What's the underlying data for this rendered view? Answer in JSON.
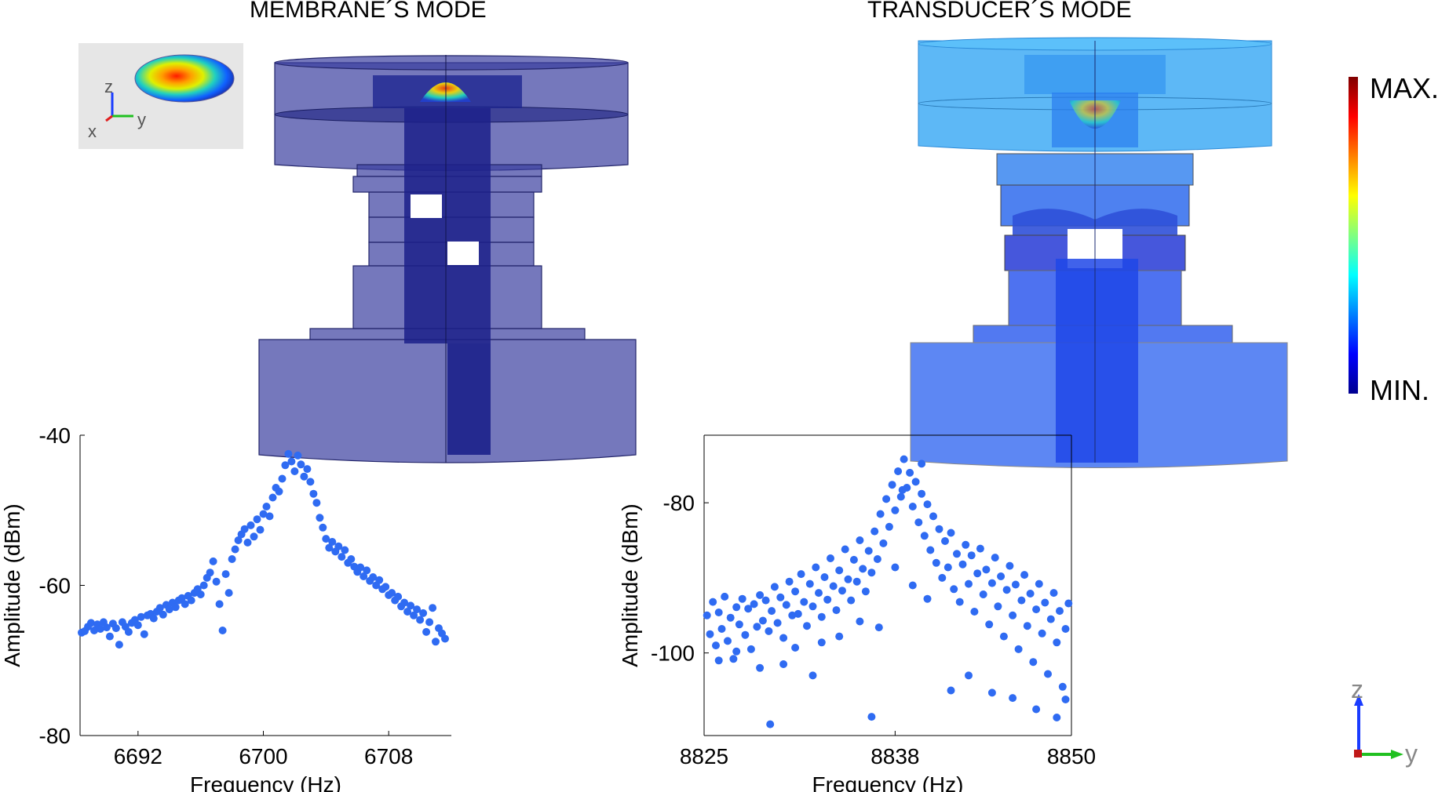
{
  "titles": {
    "left": "MEMBRANE´S MODE",
    "right": "TRANSDUCER´S MODE"
  },
  "colorbar": {
    "max_label": "MAX.",
    "min_label": "MIN.",
    "colors": [
      "#00008f",
      "#0000ff",
      "#0080ff",
      "#00ffff",
      "#80ff80",
      "#ffff00",
      "#ff8000",
      "#ff0000",
      "#800000"
    ]
  },
  "triad_inset": {
    "z": "z",
    "x": "x",
    "y": "y"
  },
  "triad_corner": {
    "z": "z",
    "y": "y"
  },
  "chart_data": [
    {
      "type": "scatter",
      "title": "",
      "xlabel": "Frequency (Hz)",
      "ylabel": "Amplitude (dBm)",
      "xlim": [
        6688.3,
        6712
      ],
      "ylim": [
        -80,
        -40
      ],
      "xticks": [
        6692,
        6700,
        6708
      ],
      "yticks": [
        -40,
        -60,
        -80
      ],
      "color": "#2f6bf2",
      "points": [
        [
          6688.4,
          -66.3
        ],
        [
          6688.6,
          -66.1
        ],
        [
          6688.8,
          -65.5
        ],
        [
          6689.0,
          -65.0
        ],
        [
          6689.2,
          -66.0
        ],
        [
          6689.4,
          -65.2
        ],
        [
          6689.6,
          -65.8
        ],
        [
          6689.8,
          -64.9
        ],
        [
          6690.0,
          -65.6
        ],
        [
          6690.2,
          -66.8
        ],
        [
          6690.4,
          -65.1
        ],
        [
          6690.6,
          -65.7
        ],
        [
          6690.8,
          -67.9
        ],
        [
          6691.0,
          -64.9
        ],
        [
          6691.2,
          -65.5
        ],
        [
          6691.4,
          -66.2
        ],
        [
          6691.6,
          -65.0
        ],
        [
          6691.8,
          -64.6
        ],
        [
          6692.0,
          -65.3
        ],
        [
          6692.2,
          -64.2
        ],
        [
          6692.4,
          -66.5
        ],
        [
          6692.6,
          -64.0
        ],
        [
          6692.8,
          -63.8
        ],
        [
          6693.0,
          -64.4
        ],
        [
          6693.2,
          -63.5
        ],
        [
          6693.4,
          -63.0
        ],
        [
          6693.6,
          -63.9
        ],
        [
          6693.8,
          -62.6
        ],
        [
          6694.0,
          -63.2
        ],
        [
          6694.2,
          -62.3
        ],
        [
          6694.4,
          -62.9
        ],
        [
          6694.6,
          -62.0
        ],
        [
          6694.8,
          -61.7
        ],
        [
          6695.0,
          -62.5
        ],
        [
          6695.2,
          -61.4
        ],
        [
          6695.4,
          -62.0
        ],
        [
          6695.6,
          -61.0
        ],
        [
          6695.8,
          -60.5
        ],
        [
          6696.0,
          -61.2
        ],
        [
          6696.2,
          -60.0
        ],
        [
          6696.4,
          -59.0
        ],
        [
          6696.6,
          -58.3
        ],
        [
          6696.8,
          -56.8
        ],
        [
          6697.0,
          -59.5
        ],
        [
          6697.2,
          -62.5
        ],
        [
          6697.4,
          -66.0
        ],
        [
          6697.6,
          -58.5
        ],
        [
          6697.8,
          -61.0
        ],
        [
          6698.0,
          -56.5
        ],
        [
          6698.2,
          -55.2
        ],
        [
          6698.4,
          -54.0
        ],
        [
          6698.6,
          -53.2
        ],
        [
          6698.8,
          -52.5
        ],
        [
          6699.0,
          -54.3
        ],
        [
          6699.2,
          -52.0
        ],
        [
          6699.4,
          -53.5
        ],
        [
          6699.6,
          -51.2
        ],
        [
          6699.8,
          -52.6
        ],
        [
          6700.0,
          -50.5
        ],
        [
          6700.2,
          -49.5
        ],
        [
          6700.4,
          -50.8
        ],
        [
          6700.6,
          -48.3
        ],
        [
          6700.8,
          -47.0
        ],
        [
          6701.0,
          -47.5
        ],
        [
          6701.2,
          -45.8
        ],
        [
          6701.4,
          -44.0
        ],
        [
          6701.6,
          -42.5
        ],
        [
          6701.8,
          -43.5
        ],
        [
          6702.0,
          -44.8
        ],
        [
          6702.2,
          -42.7
        ],
        [
          6702.4,
          -43.9
        ],
        [
          6702.6,
          -45.5
        ],
        [
          6702.8,
          -44.5
        ],
        [
          6703.0,
          -46.2
        ],
        [
          6703.2,
          -47.8
        ],
        [
          6703.4,
          -49.0
        ],
        [
          6703.6,
          -51.0
        ],
        [
          6703.8,
          -52.3
        ],
        [
          6704.0,
          -53.8
        ],
        [
          6704.2,
          -55.0
        ],
        [
          6704.4,
          -54.2
        ],
        [
          6704.6,
          -55.5
        ],
        [
          6704.8,
          -54.8
        ],
        [
          6705.0,
          -56.2
        ],
        [
          6705.2,
          -55.3
        ],
        [
          6705.4,
          -57.0
        ],
        [
          6705.6,
          -56.5
        ],
        [
          6705.8,
          -57.5
        ],
        [
          6706.0,
          -58.2
        ],
        [
          6706.2,
          -57.6
        ],
        [
          6706.4,
          -58.8
        ],
        [
          6706.6,
          -58.0
        ],
        [
          6706.8,
          -59.4
        ],
        [
          6707.0,
          -58.9
        ],
        [
          6707.2,
          -60.0
        ],
        [
          6707.4,
          -59.3
        ],
        [
          6707.6,
          -60.5
        ],
        [
          6707.8,
          -60.2
        ],
        [
          6708.0,
          -61.3
        ],
        [
          6708.2,
          -61.0
        ],
        [
          6708.4,
          -62.0
        ],
        [
          6708.6,
          -61.5
        ],
        [
          6708.8,
          -62.8
        ],
        [
          6709.0,
          -62.3
        ],
        [
          6709.2,
          -63.5
        ],
        [
          6709.4,
          -62.7
        ],
        [
          6709.6,
          -64.0
        ],
        [
          6709.8,
          -63.2
        ],
        [
          6710.0,
          -64.6
        ],
        [
          6710.2,
          -63.7
        ],
        [
          6710.4,
          -66.2
        ],
        [
          6710.6,
          -64.9
        ],
        [
          6710.8,
          -63.0
        ],
        [
          6711.0,
          -67.5
        ],
        [
          6711.2,
          -65.7
        ],
        [
          6711.4,
          -66.4
        ],
        [
          6711.6,
          -67.1
        ]
      ]
    },
    {
      "type": "scatter",
      "title": "",
      "xlabel": "Frequency (Hz)",
      "ylabel": "Amplitude (dBm)",
      "xlim": [
        8825,
        8850
      ],
      "ylim": [
        -111,
        -71
      ],
      "xticks": [
        8825,
        8838,
        8850
      ],
      "yticks": [
        -80,
        -100
      ],
      "color": "#2f6bf2",
      "points": [
        [
          8825.2,
          -95.0
        ],
        [
          8825.4,
          -97.5
        ],
        [
          8825.6,
          -93.2
        ],
        [
          8825.8,
          -99.0
        ],
        [
          8826.0,
          -94.6
        ],
        [
          8826.2,
          -96.8
        ],
        [
          8826.4,
          -92.5
        ],
        [
          8826.6,
          -98.4
        ],
        [
          8826.8,
          -95.3
        ],
        [
          8827.0,
          -100.8
        ],
        [
          8827.2,
          -93.9
        ],
        [
          8827.4,
          -96.2
        ],
        [
          8827.6,
          -92.8
        ],
        [
          8827.8,
          -97.6
        ],
        [
          8828.0,
          -94.1
        ],
        [
          8828.2,
          -99.5
        ],
        [
          8828.4,
          -93.5
        ],
        [
          8828.6,
          -96.5
        ],
        [
          8828.8,
          -92.3
        ],
        [
          8829.0,
          -95.7
        ],
        [
          8829.2,
          -93.0
        ],
        [
          8829.4,
          -97.1
        ],
        [
          8829.6,
          -94.4
        ],
        [
          8829.8,
          -91.2
        ],
        [
          8830.0,
          -96.0
        ],
        [
          8830.2,
          -92.6
        ],
        [
          8830.4,
          -98.0
        ],
        [
          8830.6,
          -93.6
        ],
        [
          8830.8,
          -90.5
        ],
        [
          8831.0,
          -95.0
        ],
        [
          8831.2,
          -91.8
        ],
        [
          8831.4,
          -94.8
        ],
        [
          8831.6,
          -89.5
        ],
        [
          8831.8,
          -93.2
        ],
        [
          8832.0,
          -96.4
        ],
        [
          8832.2,
          -90.8
        ],
        [
          8832.4,
          -93.8
        ],
        [
          8832.6,
          -88.6
        ],
        [
          8832.8,
          -92.0
        ],
        [
          8833.0,
          -95.2
        ],
        [
          8833.2,
          -89.9
        ],
        [
          8833.4,
          -92.9
        ],
        [
          8833.6,
          -87.4
        ],
        [
          8833.8,
          -91.1
        ],
        [
          8834.0,
          -94.3
        ],
        [
          8834.2,
          -89.0
        ],
        [
          8834.4,
          -91.7
        ],
        [
          8834.6,
          -86.2
        ],
        [
          8834.8,
          -90.2
        ],
        [
          8835.0,
          -93.0
        ],
        [
          8835.2,
          -87.6
        ],
        [
          8835.4,
          -90.5
        ],
        [
          8835.6,
          -85.0
        ],
        [
          8835.8,
          -88.8
        ],
        [
          8836.0,
          -91.8
        ],
        [
          8836.2,
          -86.4
        ],
        [
          8836.4,
          -89.3
        ],
        [
          8836.6,
          -83.8
        ],
        [
          8836.8,
          -87.5
        ],
        [
          8837.0,
          -81.5
        ],
        [
          8837.2,
          -85.4
        ],
        [
          8837.4,
          -79.5
        ],
        [
          8837.6,
          -83.2
        ],
        [
          8837.8,
          -77.6
        ],
        [
          8838.0,
          -81.0
        ],
        [
          8838.2,
          -75.8
        ],
        [
          8838.4,
          -79.2
        ],
        [
          8838.6,
          -74.2
        ],
        [
          8838.8,
          -78.0
        ],
        [
          8839.0,
          -76.0
        ],
        [
          8839.2,
          -80.5
        ],
        [
          8839.4,
          -77.2
        ],
        [
          8839.6,
          -82.6
        ],
        [
          8839.8,
          -78.8
        ],
        [
          8840.0,
          -84.4
        ],
        [
          8840.2,
          -80.2
        ],
        [
          8840.4,
          -86.3
        ],
        [
          8840.6,
          -81.8
        ],
        [
          8840.8,
          -88.0
        ],
        [
          8841.0,
          -83.5
        ],
        [
          8841.2,
          -90.0
        ],
        [
          8841.4,
          -85.1
        ],
        [
          8841.6,
          -88.6
        ],
        [
          8841.8,
          -84.0
        ],
        [
          8842.0,
          -91.5
        ],
        [
          8842.2,
          -86.8
        ],
        [
          8842.4,
          -93.2
        ],
        [
          8842.6,
          -88.2
        ],
        [
          8842.8,
          -85.6
        ],
        [
          8843.0,
          -90.8
        ],
        [
          8843.2,
          -87.0
        ],
        [
          8843.4,
          -94.5
        ],
        [
          8843.6,
          -89.4
        ],
        [
          8843.8,
          -86.1
        ],
        [
          8844.0,
          -92.2
        ],
        [
          8844.2,
          -88.9
        ],
        [
          8844.4,
          -96.2
        ],
        [
          8844.6,
          -90.7
        ],
        [
          8844.8,
          -87.3
        ],
        [
          8845.0,
          -93.8
        ],
        [
          8845.2,
          -89.8
        ],
        [
          8845.4,
          -97.8
        ],
        [
          8845.6,
          -91.6
        ],
        [
          8845.8,
          -88.4
        ],
        [
          8846.0,
          -95.0
        ],
        [
          8846.2,
          -90.9
        ],
        [
          8846.4,
          -99.5
        ],
        [
          8846.6,
          -93.0
        ],
        [
          8846.8,
          -89.6
        ],
        [
          8847.0,
          -96.4
        ],
        [
          8847.2,
          -92.1
        ],
        [
          8847.4,
          -101.2
        ],
        [
          8847.6,
          -94.2
        ],
        [
          8847.8,
          -90.8
        ],
        [
          8848.0,
          -97.4
        ],
        [
          8848.2,
          -93.3
        ],
        [
          8848.4,
          -102.8
        ],
        [
          8848.6,
          -95.5
        ],
        [
          8848.8,
          -92.0
        ],
        [
          8849.0,
          -98.6
        ],
        [
          8849.2,
          -94.4
        ],
        [
          8849.4,
          -104.5
        ],
        [
          8849.6,
          -96.8
        ],
        [
          8849.8,
          -93.4
        ],
        [
          8826.0,
          -101.0
        ],
        [
          8827.2,
          -99.8
        ],
        [
          8828.8,
          -102.0
        ],
        [
          8830.4,
          -101.5
        ],
        [
          8831.2,
          -99.3
        ],
        [
          8832.4,
          -103.0
        ],
        [
          8833.0,
          -98.6
        ],
        [
          8834.2,
          -97.8
        ],
        [
          8836.4,
          -108.5
        ],
        [
          8829.5,
          -109.5
        ],
        [
          8838.0,
          -88.6
        ],
        [
          8839.2,
          -91.0
        ],
        [
          8841.8,
          -105.0
        ],
        [
          8843.0,
          -103.0
        ],
        [
          8846.0,
          -106.0
        ],
        [
          8847.6,
          -107.5
        ],
        [
          8849.0,
          -108.6
        ],
        [
          8849.6,
          -106.2
        ],
        [
          8844.6,
          -105.3
        ],
        [
          8840.2,
          -92.8
        ],
        [
          8835.6,
          -95.8
        ],
        [
          8836.9,
          -96.6
        ],
        [
          8838.5,
          -78.3
        ],
        [
          8839.8,
          -74.8
        ]
      ]
    }
  ]
}
